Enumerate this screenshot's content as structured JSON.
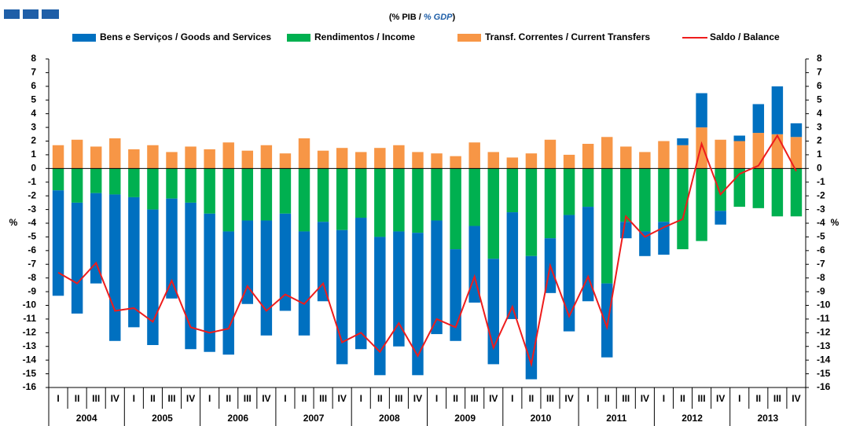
{
  "chart_data": {
    "type": "stacked_bar_line",
    "subtitle": [
      "(% PIB / ",
      "% GDP",
      ")"
    ],
    "y_label": "%",
    "categories": [
      "I",
      "II",
      "III",
      "IV",
      "I",
      "II",
      "III",
      "IV",
      "I",
      "II",
      "III",
      "IV",
      "I",
      "II",
      "III",
      "IV",
      "I",
      "II",
      "III",
      "IV",
      "I",
      "II",
      "III",
      "IV",
      "I",
      "II",
      "III",
      "IV",
      "I",
      "II",
      "III",
      "IV",
      "I",
      "II",
      "III",
      "IV",
      "I",
      "II",
      "III",
      "IV"
    ],
    "years": [
      "2004",
      "2005",
      "2006",
      "2007",
      "2008",
      "2009",
      "2010",
      "2011",
      "2012",
      "2013"
    ],
    "series": [
      {
        "name": "Bens e Serviços / Goods and Services",
        "color": "#0070c0",
        "kind": "bar",
        "values": [
          -7.7,
          -8.1,
          -6.6,
          -10.7,
          -9.5,
          -9.9,
          -7.3,
          -10.7,
          -10.1,
          -9.0,
          -6.1,
          -8.4,
          -7.1,
          -7.6,
          -5.8,
          -9.8,
          -9.6,
          -10.1,
          -8.4,
          -10.4,
          -8.3,
          -6.7,
          -5.6,
          -7.7,
          -7.8,
          -9.0,
          -4.0,
          -8.5,
          -6.9,
          -5.4,
          -1.2,
          -1.8,
          -2.4,
          0.5,
          2.5,
          -1.0,
          0.4,
          2.1,
          3.5,
          1.0
        ]
      },
      {
        "name": "Rendimentos / Income",
        "color": "#00b050",
        "kind": "bar",
        "values": [
          -1.6,
          -2.5,
          -1.8,
          -1.9,
          -2.1,
          -3.0,
          -2.2,
          -2.5,
          -3.3,
          -4.6,
          -3.8,
          -3.8,
          -3.3,
          -4.6,
          -3.9,
          -4.5,
          -3.6,
          -5.0,
          -4.6,
          -4.7,
          -3.8,
          -5.9,
          -4.2,
          -6.6,
          -3.2,
          -6.4,
          -5.1,
          -3.4,
          -2.8,
          -8.4,
          -3.9,
          -4.6,
          -3.9,
          -5.9,
          -5.3,
          -3.1,
          -2.8,
          -2.9,
          -3.5,
          -3.5
        ]
      },
      {
        "name": "Transf. Correntes / Current Transfers",
        "color": "#f79646",
        "kind": "bar",
        "values": [
          1.7,
          2.1,
          1.6,
          2.2,
          1.4,
          1.7,
          1.2,
          1.6,
          1.4,
          1.9,
          1.3,
          1.7,
          1.1,
          2.2,
          1.3,
          1.5,
          1.2,
          1.5,
          1.7,
          1.2,
          1.1,
          0.9,
          1.9,
          1.2,
          0.8,
          1.1,
          2.1,
          1.0,
          1.8,
          2.3,
          1.6,
          1.2,
          2.0,
          1.7,
          3.0,
          2.1,
          2.0,
          2.6,
          2.5,
          2.3
        ]
      },
      {
        "name": "Saldo / Balance",
        "color": "#ee1c1c",
        "kind": "line",
        "values": [
          -7.6,
          -8.4,
          -6.9,
          -10.4,
          -10.2,
          -11.2,
          -8.2,
          -11.6,
          -12.0,
          -11.7,
          -8.6,
          -10.4,
          -9.2,
          -9.9,
          -8.4,
          -12.7,
          -12.0,
          -13.4,
          -11.3,
          -13.7,
          -11.0,
          -11.6,
          -7.9,
          -13.1,
          -10.1,
          -14.3,
          -7.1,
          -10.8,
          -7.9,
          -11.6,
          -3.5,
          -5.0,
          -4.3,
          -3.7,
          1.8,
          -1.9,
          -0.4,
          0.2,
          2.4,
          -0.2
        ]
      }
    ],
    "ylim": [
      -16,
      8
    ],
    "yticks": [
      8,
      7,
      6,
      5,
      4,
      3,
      2,
      1,
      0,
      -1,
      -2,
      -3,
      -4,
      -5,
      -6,
      -7,
      -8,
      -9,
      -10,
      -11,
      -12,
      -13,
      -14,
      -15,
      -16
    ]
  }
}
